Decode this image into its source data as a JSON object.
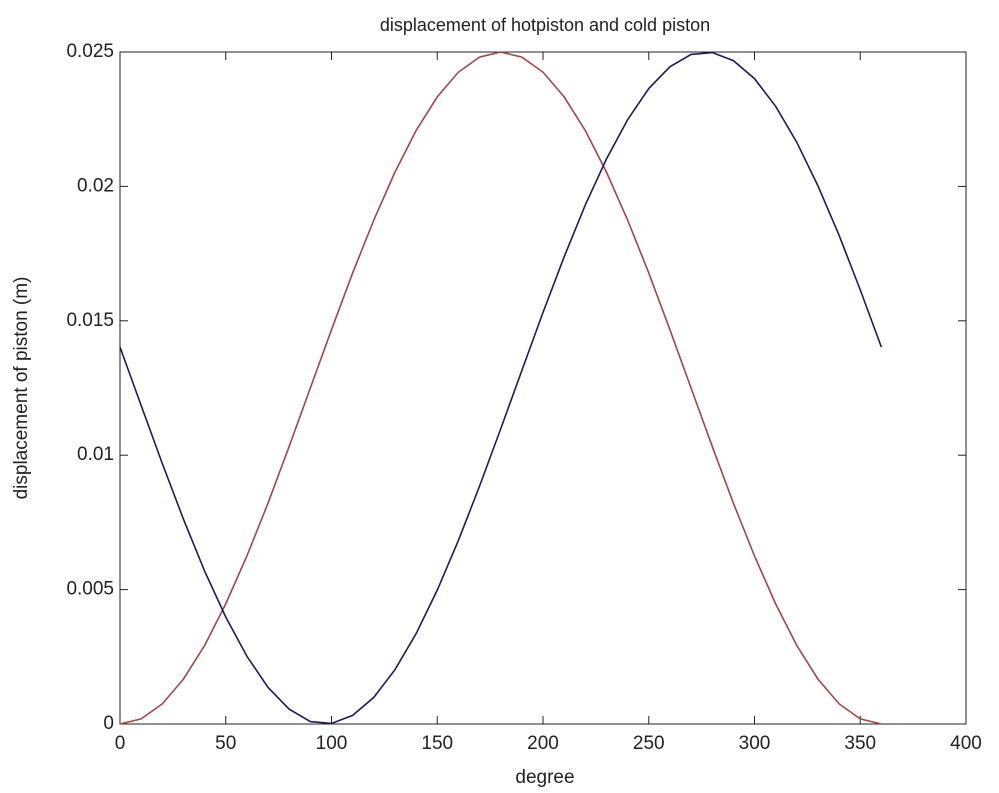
{
  "chart_data": {
    "type": "line",
    "title": "displacement of hotpiston and cold piston",
    "x_label": "degree",
    "y_label": "displacement of piston (m)",
    "x": [
      0,
      10,
      20,
      30,
      40,
      50,
      60,
      70,
      80,
      90,
      100,
      110,
      120,
      130,
      140,
      150,
      160,
      170,
      180,
      190,
      200,
      210,
      220,
      230,
      240,
      250,
      260,
      270,
      280,
      290,
      300,
      310,
      320,
      330,
      340,
      350,
      360
    ],
    "series": [
      {
        "color": "#a04848",
        "values": [
          0,
          0.00019,
          0.00075,
          0.00167,
          0.00292,
          0.00447,
          0.00625,
          0.00822,
          0.01033,
          0.0125,
          0.01467,
          0.01678,
          0.01875,
          0.02053,
          0.02208,
          0.02333,
          0.02425,
          0.02481,
          0.025,
          0.02481,
          0.02425,
          0.02333,
          0.02208,
          0.02053,
          0.01875,
          0.01678,
          0.01467,
          0.0125,
          0.01033,
          0.00822,
          0.00625,
          0.00447,
          0.00292,
          0.00167,
          0.00075,
          0.00019,
          0
        ]
      },
      {
        "color": "#1c1c5c",
        "values": [
          0.01402,
          0.01185,
          0.00969,
          0.00762,
          0.00569,
          0.00398,
          0.00252,
          0.00136,
          0.00055,
          9e-05,
          2e-05,
          0.00032,
          0.00099,
          0.00202,
          0.00336,
          0.00498,
          0.00683,
          0.00885,
          0.01098,
          0.01315,
          0.01531,
          0.01738,
          0.01931,
          0.02102,
          0.02248,
          0.02364,
          0.02445,
          0.02491,
          0.02498,
          0.02468,
          0.02401,
          0.02298,
          0.02164,
          0.02002,
          0.01818,
          0.01615,
          0.01402
        ]
      }
    ],
    "xlim": [
      0,
      400
    ],
    "xticks": [
      0,
      50,
      100,
      150,
      200,
      250,
      300,
      350,
      400
    ],
    "ylim": [
      0,
      0.025
    ],
    "yticks": [
      0,
      0.005,
      0.01,
      0.015,
      0.02,
      0.025
    ]
  }
}
